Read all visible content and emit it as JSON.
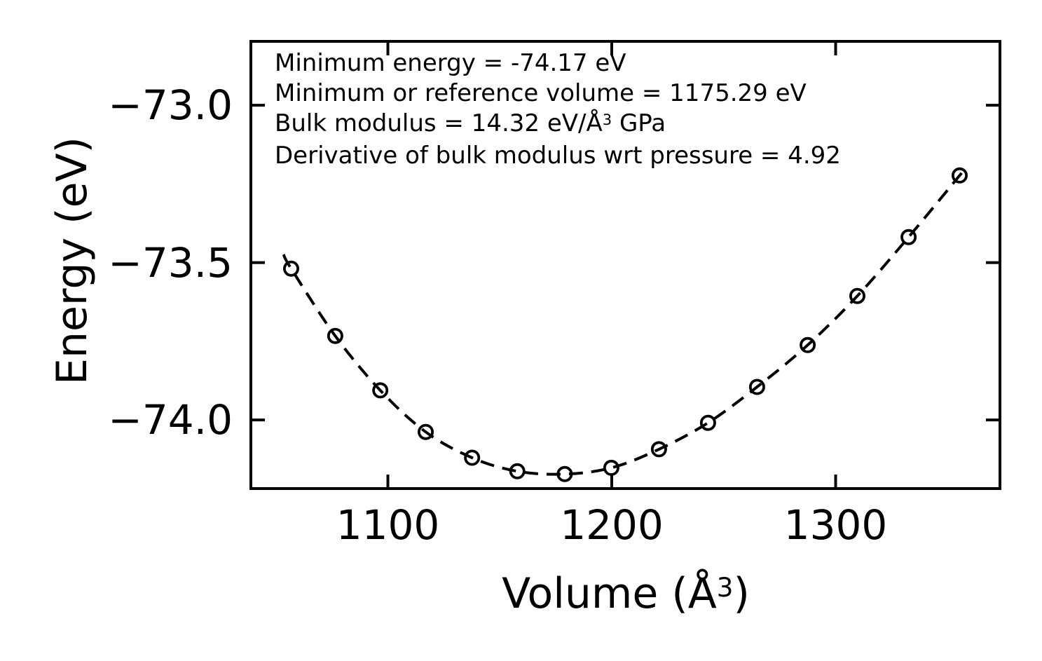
{
  "colors": {
    "foreground": "#000000",
    "background": "#ffffff"
  },
  "annotation": {
    "line1": "Minimum energy = -74.17 eV",
    "line2": "Minimum or reference volume = 1175.29 eV",
    "line3_prefix": "Bulk modulus = 14.32 eV/Å",
    "line3_sup": "3",
    "line3_suffix": " GPa",
    "line4": "Derivative of bulk modulus wrt pressure = 4.92"
  },
  "xlabel": {
    "prefix": "Volume (Å",
    "sup": "3",
    "suffix": ")"
  },
  "ylabel": "Energy (eV)",
  "chart_data": {
    "type": "scatter",
    "title": "",
    "xlabel": "Volume (Å³)",
    "ylabel": "Energy (eV)",
    "xlim": [
      1038.8,
      1373.4
    ],
    "ylim": [
      -74.218,
      -72.797
    ],
    "grid": false,
    "legend": null,
    "tick_direction": "in",
    "ticks_on_all_sides": true,
    "x_ticks": {
      "values": [
        1100,
        1200,
        1300
      ],
      "labels": [
        "1100",
        "1200",
        "1300"
      ]
    },
    "y_ticks": {
      "values": [
        -73.0,
        -73.5,
        -74.0
      ],
      "labels": [
        "−73.0",
        "−73.5",
        "−74.0"
      ]
    },
    "series": [
      {
        "name": "calculated-energies",
        "type": "scatter",
        "marker": "open-circle",
        "color": "#000000",
        "x": [
          1056.8,
          1076.5,
          1096.6,
          1116.9,
          1137.6,
          1157.8,
          1179.0,
          1199.8,
          1221.1,
          1243.0,
          1264.9,
          1287.5,
          1309.7,
          1332.6,
          1355.4
        ],
        "y": [
          -73.519,
          -73.733,
          -73.906,
          -74.038,
          -74.12,
          -74.163,
          -74.172,
          -74.152,
          -74.093,
          -74.009,
          -73.895,
          -73.762,
          -73.606,
          -73.419,
          -73.223
        ]
      },
      {
        "name": "eos-fit",
        "type": "line",
        "linestyle": "dashed",
        "color": "#000000",
        "passes_through": "calculated-energies",
        "extends": {
          "x": [
            1053.4,
            1357.3
          ],
          "y": [
            -73.474,
            -73.207
          ]
        }
      }
    ],
    "fit_results": {
      "minimum_energy_eV": -74.17,
      "reference_volume": 1175.29,
      "bulk_modulus": 14.32,
      "bulk_modulus_pressure_derivative": 4.92
    }
  }
}
